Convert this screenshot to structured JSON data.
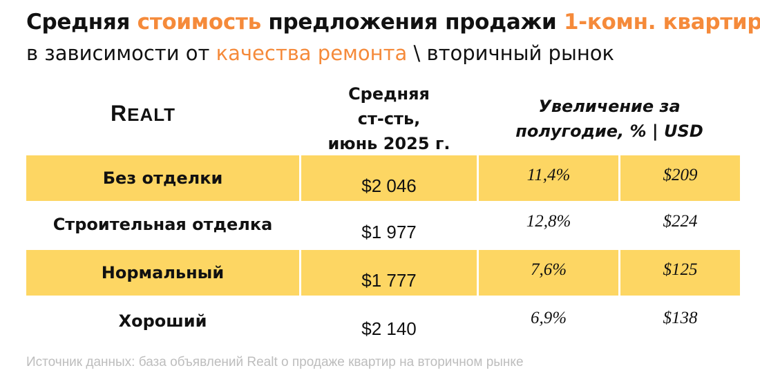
{
  "title": {
    "line1_parts": [
      "Средняя ",
      "стоимость",
      " предложения продажи ",
      "1-комн. квартир"
    ],
    "line2_parts": [
      "в зависимости от ",
      "качества ремонта",
      " \\ вторичный рынок"
    ]
  },
  "logo": "Realt",
  "colors": {
    "accent": "#F58A3A",
    "row_highlight": "#FDD663"
  },
  "chart_data": {
    "type": "table",
    "columns": [
      "",
      "Средняя ст-сть, июнь 2025 г.",
      "Увеличение за полугодие, % | USD"
    ],
    "header_col2_lines": [
      "Средняя",
      "ст-сть,",
      "июнь 2025 г."
    ],
    "header_col3_lines": [
      "Увеличение за",
      "полугодие, % | USD"
    ],
    "rows": [
      {
        "label": "Без отделки",
        "price": "$2 046",
        "pct": "11,4%",
        "usd": "$209",
        "highlight": true
      },
      {
        "label": "Строительная отделка",
        "price": "$1 977",
        "pct": "12,8%",
        "usd": "$224",
        "highlight": false
      },
      {
        "label": "Нормальный",
        "price": "$1 777",
        "pct": "7,6%",
        "usd": "$125",
        "highlight": true
      },
      {
        "label": "Хороший",
        "price": "$2 140",
        "pct": "6,9%",
        "usd": "$138",
        "highlight": false
      }
    ]
  },
  "source": "Источник данных: база объявлений Realt о продаже квартир на вторичном рынке"
}
